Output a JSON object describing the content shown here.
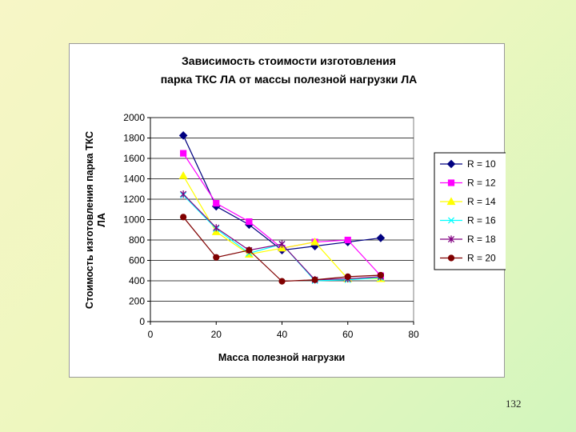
{
  "page": {
    "number": "132"
  },
  "chart_data": {
    "type": "line",
    "title_lines": [
      "Зависимость стоимости изготовления",
      "парка ТКС ЛА от массы полезной нагрузки ЛА"
    ],
    "xlabel": "Масса полезной нагрузки",
    "ylabel_lines": [
      "Стоимость изготовления парка ТКС",
      "ЛА"
    ],
    "x": [
      10,
      20,
      30,
      40,
      50,
      60,
      70
    ],
    "xlim": [
      0,
      80
    ],
    "ylim": [
      0,
      2000
    ],
    "x_ticks": [
      0,
      20,
      40,
      60,
      80
    ],
    "y_ticks": [
      0,
      200,
      400,
      600,
      800,
      1000,
      1200,
      1400,
      1600,
      1800,
      2000
    ],
    "grid": "horizontal",
    "legend_position": "right",
    "series": [
      {
        "name": "R =  10",
        "color": "#000080",
        "marker": "diamond",
        "values": [
          1825,
          1130,
          950,
          700,
          740,
          780,
          820
        ]
      },
      {
        "name": "R =  12",
        "color": "#ff00ff",
        "marker": "square",
        "values": [
          1650,
          1160,
          980,
          720,
          780,
          800,
          450
        ]
      },
      {
        "name": "R =  14",
        "color": "#ffff00",
        "marker": "triangle",
        "values": [
          1430,
          880,
          660,
          720,
          780,
          420,
          420
        ]
      },
      {
        "name": "R =  16",
        "color": "#00ffff",
        "marker": "x",
        "values": [
          1240,
          910,
          670,
          760,
          400,
          410,
          430
        ]
      },
      {
        "name": "R =  18",
        "color": "#800080",
        "marker": "star",
        "values": [
          1250,
          920,
          700,
          760,
          410,
          420,
          440
        ]
      },
      {
        "name": "R =  20",
        "color": "#800000",
        "marker": "circle",
        "values": [
          1025,
          630,
          700,
          395,
          410,
          440,
          455
        ]
      }
    ]
  }
}
